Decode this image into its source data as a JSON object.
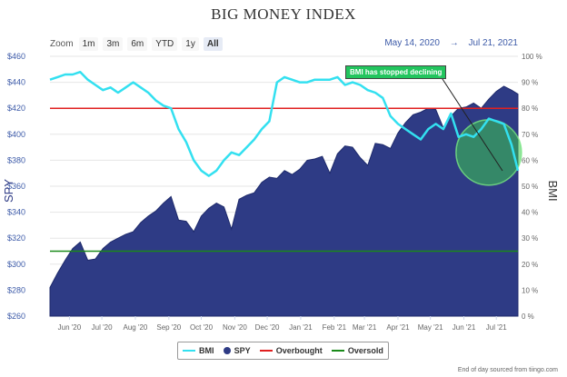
{
  "chart_data": {
    "type": "area",
    "title": "BIG MONEY INDEX",
    "left_axis_label": "SPY",
    "right_axis_label": "BMI",
    "left_axis_ticks": [
      "$260",
      "$280",
      "$300",
      "$320",
      "$340",
      "$360",
      "$380",
      "$400",
      "$420",
      "$440",
      "$460"
    ],
    "left_axis_range": [
      260,
      460
    ],
    "right_axis_ticks": [
      "0 %",
      "10 %",
      "20 %",
      "30 %",
      "40 %",
      "50 %",
      "60 %",
      "70 %",
      "80 %",
      "90 %",
      "100 %"
    ],
    "right_axis_range": [
      0,
      100
    ],
    "x_axis_ticks": [
      "Jun '20",
      "Jul '20",
      "Aug '20",
      "Sep '20",
      "Oct '20",
      "Nov '20",
      "Dec '20",
      "Jan '21",
      "Feb '21",
      "Mar '21",
      "Apr '21",
      "May '21",
      "Jun '21",
      "Jul '21"
    ],
    "x_range": [
      "2020-05-14",
      "2021-07-21"
    ],
    "grid": true,
    "legend_position": "bottom",
    "series": [
      {
        "name": "BMI",
        "axis": "right",
        "color": "#33e0f0",
        "points": [
          [
            "2020-05-14",
            91
          ],
          [
            "2020-05-21",
            92
          ],
          [
            "2020-05-28",
            93
          ],
          [
            "2020-06-04",
            93
          ],
          [
            "2020-06-11",
            94
          ],
          [
            "2020-06-18",
            91
          ],
          [
            "2020-06-25",
            89
          ],
          [
            "2020-07-02",
            87
          ],
          [
            "2020-07-09",
            88
          ],
          [
            "2020-07-16",
            86
          ],
          [
            "2020-07-23",
            88
          ],
          [
            "2020-07-30",
            90
          ],
          [
            "2020-08-06",
            88
          ],
          [
            "2020-08-13",
            86
          ],
          [
            "2020-08-20",
            83
          ],
          [
            "2020-08-27",
            81
          ],
          [
            "2020-09-03",
            80
          ],
          [
            "2020-09-10",
            72
          ],
          [
            "2020-09-17",
            67
          ],
          [
            "2020-09-24",
            60
          ],
          [
            "2020-10-01",
            56
          ],
          [
            "2020-10-08",
            54
          ],
          [
            "2020-10-15",
            56
          ],
          [
            "2020-10-22",
            60
          ],
          [
            "2020-10-29",
            63
          ],
          [
            "2020-11-05",
            62
          ],
          [
            "2020-11-12",
            65
          ],
          [
            "2020-11-19",
            68
          ],
          [
            "2020-11-26",
            72
          ],
          [
            "2020-12-03",
            75
          ],
          [
            "2020-12-10",
            90
          ],
          [
            "2020-12-17",
            92
          ],
          [
            "2020-12-24",
            91
          ],
          [
            "2020-12-31",
            90
          ],
          [
            "2021-01-07",
            90
          ],
          [
            "2021-01-14",
            91
          ],
          [
            "2021-01-21",
            91
          ],
          [
            "2021-01-28",
            91
          ],
          [
            "2021-02-04",
            92
          ],
          [
            "2021-02-11",
            89
          ],
          [
            "2021-02-18",
            90
          ],
          [
            "2021-02-25",
            89
          ],
          [
            "2021-03-04",
            87
          ],
          [
            "2021-03-11",
            86
          ],
          [
            "2021-03-18",
            84
          ],
          [
            "2021-03-25",
            77
          ],
          [
            "2021-04-01",
            74
          ],
          [
            "2021-04-08",
            72
          ],
          [
            "2021-04-15",
            70
          ],
          [
            "2021-04-22",
            68
          ],
          [
            "2021-04-29",
            72
          ],
          [
            "2021-05-06",
            74
          ],
          [
            "2021-05-13",
            72
          ],
          [
            "2021-05-20",
            78
          ],
          [
            "2021-05-27",
            69
          ],
          [
            "2021-06-03",
            70
          ],
          [
            "2021-06-10",
            69
          ],
          [
            "2021-06-17",
            72
          ],
          [
            "2021-06-24",
            76
          ],
          [
            "2021-07-01",
            75
          ],
          [
            "2021-07-08",
            74
          ],
          [
            "2021-07-15",
            66
          ],
          [
            "2021-07-21",
            56
          ]
        ]
      },
      {
        "name": "SPY",
        "axis": "left",
        "color": "#2e3b85",
        "points": [
          [
            "2020-05-14",
            282
          ],
          [
            "2020-05-21",
            293
          ],
          [
            "2020-05-28",
            303
          ],
          [
            "2020-06-04",
            312
          ],
          [
            "2020-06-11",
            317
          ],
          [
            "2020-06-18",
            303
          ],
          [
            "2020-06-25",
            304
          ],
          [
            "2020-07-02",
            312
          ],
          [
            "2020-07-09",
            317
          ],
          [
            "2020-07-16",
            320
          ],
          [
            "2020-07-23",
            323
          ],
          [
            "2020-07-30",
            325
          ],
          [
            "2020-08-06",
            332
          ],
          [
            "2020-08-13",
            337
          ],
          [
            "2020-08-20",
            341
          ],
          [
            "2020-08-27",
            347
          ],
          [
            "2020-09-03",
            352
          ],
          [
            "2020-09-10",
            334
          ],
          [
            "2020-09-17",
            333
          ],
          [
            "2020-09-24",
            325
          ],
          [
            "2020-10-01",
            337
          ],
          [
            "2020-10-08",
            343
          ],
          [
            "2020-10-15",
            347
          ],
          [
            "2020-10-22",
            344
          ],
          [
            "2020-10-29",
            327
          ],
          [
            "2020-11-05",
            350
          ],
          [
            "2020-11-12",
            353
          ],
          [
            "2020-11-19",
            355
          ],
          [
            "2020-11-26",
            363
          ],
          [
            "2020-12-03",
            367
          ],
          [
            "2020-12-10",
            366
          ],
          [
            "2020-12-17",
            372
          ],
          [
            "2020-12-24",
            369
          ],
          [
            "2020-12-31",
            373
          ],
          [
            "2021-01-07",
            380
          ],
          [
            "2021-01-14",
            381
          ],
          [
            "2021-01-21",
            383
          ],
          [
            "2021-01-28",
            370
          ],
          [
            "2021-02-04",
            385
          ],
          [
            "2021-02-11",
            391
          ],
          [
            "2021-02-18",
            390
          ],
          [
            "2021-02-25",
            382
          ],
          [
            "2021-03-04",
            376
          ],
          [
            "2021-03-11",
            393
          ],
          [
            "2021-03-18",
            392
          ],
          [
            "2021-03-25",
            389
          ],
          [
            "2021-04-01",
            401
          ],
          [
            "2021-04-08",
            409
          ],
          [
            "2021-04-15",
            415
          ],
          [
            "2021-04-22",
            417
          ],
          [
            "2021-04-29",
            420
          ],
          [
            "2021-05-06",
            419
          ],
          [
            "2021-05-13",
            405
          ],
          [
            "2021-05-20",
            414
          ],
          [
            "2021-05-27",
            420
          ],
          [
            "2021-06-03",
            421
          ],
          [
            "2021-06-10",
            424
          ],
          [
            "2021-06-17",
            420
          ],
          [
            "2021-06-24",
            427
          ],
          [
            "2021-07-01",
            433
          ],
          [
            "2021-07-08",
            437
          ],
          [
            "2021-07-15",
            434
          ],
          [
            "2021-07-21",
            431
          ]
        ]
      },
      {
        "name": "Overbought",
        "axis": "right",
        "color": "#e02020",
        "value": 80
      },
      {
        "name": "Oversold",
        "axis": "right",
        "color": "#1a8a1a",
        "value": 25
      }
    ],
    "annotations": [
      {
        "text": "BMI has stopped declining",
        "color": "#22c55e"
      }
    ]
  },
  "ui": {
    "zoom_label": "Zoom",
    "zoom_buttons": [
      "1m",
      "3m",
      "6m",
      "YTD",
      "1y",
      "All"
    ],
    "active_zoom": "All",
    "range_from": "May 14, 2020",
    "range_sep": "→",
    "range_to": "Jul 21, 2021",
    "credit": "End of day sourced from tiingo.com"
  }
}
